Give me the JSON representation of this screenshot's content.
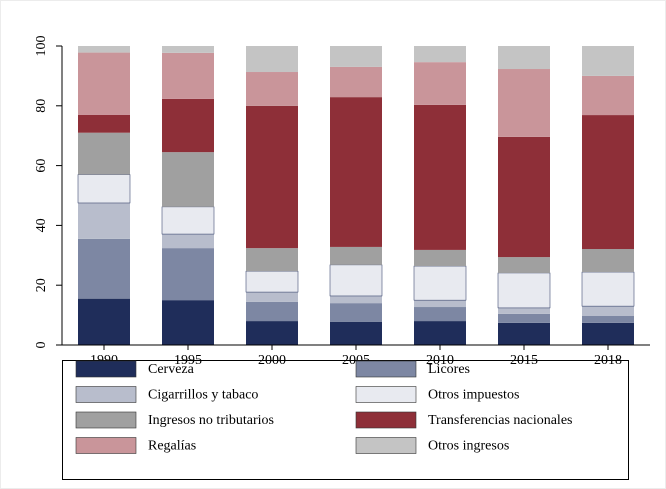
{
  "chart_data": {
    "type": "stacked_bar",
    "categories": [
      "1990",
      "1995",
      "2000",
      "2005",
      "2010",
      "2015",
      "2018"
    ],
    "series": [
      {
        "name": "Cerveza",
        "color": "#1f2d5a",
        "values": [
          15.5,
          15,
          8,
          7.7,
          8,
          7.4,
          7.4
        ]
      },
      {
        "name": "Licores",
        "color": "#7d87a3",
        "values": [
          20,
          17.4,
          6.4,
          6.3,
          4.7,
          3,
          2.3
        ]
      },
      {
        "name": "Cigarrillos y tabaco",
        "color": "#b8bdcc",
        "values": [
          12,
          4.7,
          3.3,
          2.4,
          2.3,
          2,
          3.3
        ]
      },
      {
        "name": "Otros impuestos",
        "color": "#e8eaf0",
        "values": [
          9.5,
          9.1,
          7,
          10.4,
          11.4,
          11.7,
          11.4
        ]
      },
      {
        "name": "Ingresos no tributarios",
        "color": "#a0a0a0",
        "values": [
          14,
          18.3,
          7.7,
          6,
          5.4,
          5.3,
          7.7
        ]
      },
      {
        "name": "Transferencias nacionales",
        "color": "#8e2f38",
        "values": [
          6,
          17.8,
          47.6,
          50.1,
          48.5,
          40.2,
          44.8
        ]
      },
      {
        "name": "Regalías",
        "color": "#c9959a",
        "values": [
          20.8,
          15.4,
          11.3,
          10.1,
          14.3,
          22.7,
          13.1
        ]
      },
      {
        "name": "Otros ingresos",
        "color": "#c4c4c4",
        "values": [
          2.2,
          2.3,
          8.7,
          7,
          5.4,
          7.7,
          10
        ]
      }
    ],
    "ylim": [
      0,
      100
    ],
    "yticks": [
      0,
      20,
      40,
      60,
      80,
      100
    ]
  }
}
